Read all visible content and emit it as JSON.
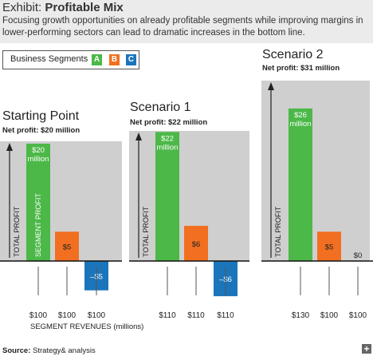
{
  "header": {
    "exhibit_prefix": "Exhibit:",
    "exhibit_title": "Profitable Mix",
    "subtitle": "Focusing growth opportunities on already profitable segments while improving margins in lower-performing sectors can lead to dramatic increases in the bottom line."
  },
  "legend": {
    "label": "Business Segments",
    "items": [
      {
        "key": "A",
        "color": "#4cb848"
      },
      {
        "key": "B",
        "color": "#f26f21"
      },
      {
        "key": "C",
        "color": "#1b75bb"
      }
    ]
  },
  "scenarios": [
    {
      "title": "Starting Point",
      "profit": "Net profit: $20 million"
    },
    {
      "title": "Scenario 1",
      "profit": "Net profit: $22 million"
    },
    {
      "title": "Scenario 2",
      "profit": "Net profit: $31 million"
    }
  ],
  "axis_labels": {
    "y": "TOTAL PROFIT",
    "segment_profit": "SEGMENT PROFIT",
    "x": "SEGMENT REVENUES (millions)"
  },
  "footer": {
    "source_label": "Source:",
    "source_text": "Strategy& analysis",
    "plus": "+"
  },
  "chart_data": [
    {
      "type": "bar",
      "title": "Starting Point",
      "subtitle": "Net profit: $20 million",
      "ylabel": "TOTAL PROFIT",
      "xlabel": "SEGMENT REVENUES (millions)",
      "categories": [
        "A",
        "B",
        "C"
      ],
      "values": [
        20,
        5,
        -5
      ],
      "value_labels": [
        "$20 million",
        "$5",
        "–$5"
      ],
      "revenue_labels": [
        "$100",
        "$100",
        "$100"
      ],
      "colors": [
        "#4cb848",
        "#f26f21",
        "#1b75bb"
      ]
    },
    {
      "type": "bar",
      "title": "Scenario 1",
      "subtitle": "Net profit: $22 million",
      "ylabel": "TOTAL PROFIT",
      "categories": [
        "A",
        "B",
        "C"
      ],
      "values": [
        22,
        6,
        -6
      ],
      "value_labels": [
        "$22 million",
        "$6",
        "–$6"
      ],
      "revenue_labels": [
        "$110",
        "$110",
        "$110"
      ],
      "colors": [
        "#4cb848",
        "#f26f21",
        "#1b75bb"
      ]
    },
    {
      "type": "bar",
      "title": "Scenario 2",
      "subtitle": "Net profit: $31 million",
      "ylabel": "TOTAL PROFIT",
      "categories": [
        "A",
        "B",
        "C"
      ],
      "values": [
        26,
        5,
        0
      ],
      "value_labels": [
        "$26 million",
        "$5",
        "$0"
      ],
      "revenue_labels": [
        "$130",
        "$100",
        "$100"
      ],
      "colors": [
        "#4cb848",
        "#f26f21",
        "#1b75bb"
      ]
    }
  ]
}
